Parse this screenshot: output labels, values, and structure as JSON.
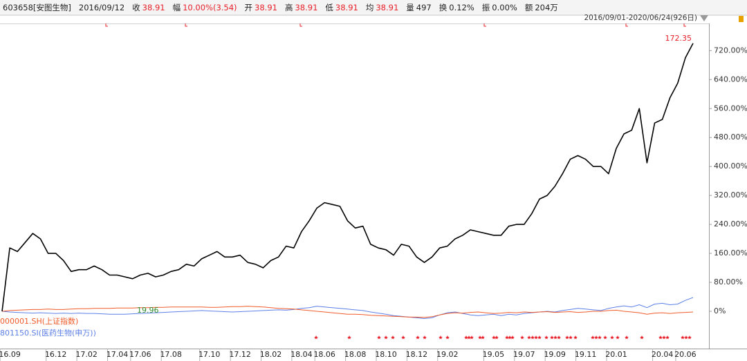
{
  "chart_data": {
    "type": "line",
    "header": [
      {
        "label": "603658[安图生物]",
        "value": "2016/09/12"
      },
      {
        "label": "收",
        "value": "38.91"
      },
      {
        "label": "幅",
        "value": "10.00%(3.54)"
      },
      {
        "label": "开",
        "value": "38.91"
      },
      {
        "label": "高",
        "value": "38.91"
      },
      {
        "label": "低",
        "value": "38.91"
      },
      {
        "label": "均",
        "value": "38.91"
      },
      {
        "label": "量",
        "value": "497"
      },
      {
        "label": "换",
        "value": "0.12%"
      },
      {
        "label": "振",
        "value": "0.00%"
      },
      {
        "label": "额",
        "value": "204万"
      }
    ],
    "range_label": "2016/09/01-2020/06/24(926日)",
    "annotations": [
      {
        "text": "172.35",
        "color": "#e8202a"
      },
      {
        "text": "19.96",
        "color": "#2e8b2e"
      }
    ],
    "categories": [
      null,
      "16.09",
      null,
      null,
      null,
      null,
      null,
      "16.12",
      null,
      null,
      null,
      "17.02",
      null,
      null,
      null,
      "17.04",
      null,
      null,
      "17.06",
      null,
      null,
      null,
      "17.08",
      null,
      null,
      null,
      null,
      "17.10",
      null,
      null,
      null,
      "17.12",
      null,
      null,
      null,
      "18.02",
      null,
      null,
      null,
      "18.04",
      null,
      null,
      "18.06",
      null,
      null,
      null,
      "18.08",
      null,
      null,
      null,
      "18.10",
      null,
      null,
      null,
      "18.12",
      null,
      null,
      null,
      "19.02",
      null,
      null,
      null,
      null,
      null,
      "19.05",
      null,
      null,
      null,
      "19.07",
      null,
      null,
      null,
      "19.09",
      null,
      null,
      null,
      "19.11",
      null,
      null,
      null,
      "20.01",
      null,
      null,
      null,
      null,
      null,
      "20.04",
      null,
      null,
      "20.06",
      null
    ],
    "series": [
      {
        "name": "603658[安图生物]",
        "color": "#000000",
        "width": 1.6,
        "values": [
          0,
          175,
          165,
          190,
          215,
          200,
          160,
          160,
          140,
          110,
          115,
          115,
          125,
          115,
          100,
          100,
          95,
          90,
          100,
          105,
          95,
          100,
          110,
          115,
          130,
          125,
          145,
          155,
          165,
          150,
          150,
          155,
          135,
          130,
          120,
          140,
          150,
          180,
          175,
          220,
          250,
          285,
          300,
          295,
          290,
          250,
          230,
          235,
          185,
          175,
          170,
          155,
          185,
          180,
          150,
          135,
          150,
          175,
          180,
          200,
          210,
          225,
          220,
          215,
          210,
          210,
          235,
          240,
          240,
          270,
          310,
          320,
          345,
          380,
          420,
          430,
          420,
          400,
          400,
          380,
          450,
          490,
          500,
          560,
          410,
          520,
          530,
          590,
          630,
          700,
          740
        ]
      },
      {
        "name": "000001.SH(上证指数)",
        "color": "#f05a28",
        "width": 1,
        "legend": true,
        "values": [
          0,
          2,
          3,
          4,
          5,
          5,
          6,
          5,
          5,
          6,
          7,
          7,
          8,
          8,
          8,
          9,
          9,
          9,
          10,
          10,
          11,
          11,
          12,
          12,
          12,
          12,
          12,
          11,
          11,
          12,
          13,
          13,
          14,
          13,
          12,
          10,
          8,
          7,
          6,
          4,
          2,
          0,
          -2,
          -4,
          -6,
          -8,
          -8,
          -9,
          -11,
          -12,
          -13,
          -14,
          -15,
          -16,
          -16,
          -17,
          -15,
          -10,
          -6,
          -4,
          -5,
          -3,
          -2,
          -4,
          -6,
          -5,
          -3,
          -4,
          -2,
          -3,
          -2,
          -1,
          -3,
          -2,
          -1,
          -3,
          -2,
          0,
          0,
          2,
          3,
          0,
          -2,
          -4,
          -8,
          -5,
          -4,
          -6,
          -4,
          -3,
          -2
        ]
      },
      {
        "name": "801150.SI(医药生物(申万))",
        "color": "#5b7fe6",
        "width": 1,
        "legend": true,
        "values": [
          0,
          -2,
          -3,
          -4,
          -5,
          -4,
          -5,
          -6,
          -5,
          -6,
          -5,
          -6,
          -6,
          -7,
          -8,
          -8,
          -8,
          -7,
          -6,
          -5,
          -4,
          -3,
          -2,
          -1,
          0,
          1,
          2,
          1,
          0,
          -1,
          -2,
          -1,
          0,
          1,
          2,
          3,
          4,
          3,
          5,
          8,
          10,
          14,
          12,
          10,
          8,
          6,
          4,
          2,
          -2,
          -5,
          -8,
          -12,
          -14,
          -16,
          -18,
          -20,
          -18,
          -10,
          -4,
          -2,
          -6,
          -10,
          -12,
          -10,
          -8,
          -12,
          -8,
          -10,
          -6,
          -4,
          -2,
          0,
          -2,
          2,
          5,
          8,
          6,
          4,
          2,
          8,
          12,
          15,
          12,
          18,
          10,
          20,
          22,
          18,
          20,
          30,
          38
        ]
      }
    ],
    "ylim": [
      -103,
      795
    ],
    "yticks": [
      {
        "value": 0,
        "label": "0%"
      },
      {
        "value": 80,
        "label": "80.00%"
      },
      {
        "value": 160,
        "label": "160.00%"
      },
      {
        "value": 240,
        "label": "240.00%"
      },
      {
        "value": 320,
        "label": "320.00%"
      },
      {
        "value": 400,
        "label": "400.00%"
      },
      {
        "value": 480,
        "label": "480.00%"
      },
      {
        "value": 560,
        "label": "560.00%"
      },
      {
        "value": 640,
        "label": "640.00%"
      },
      {
        "value": 720,
        "label": "720.00%"
      }
    ],
    "grid": false
  }
}
